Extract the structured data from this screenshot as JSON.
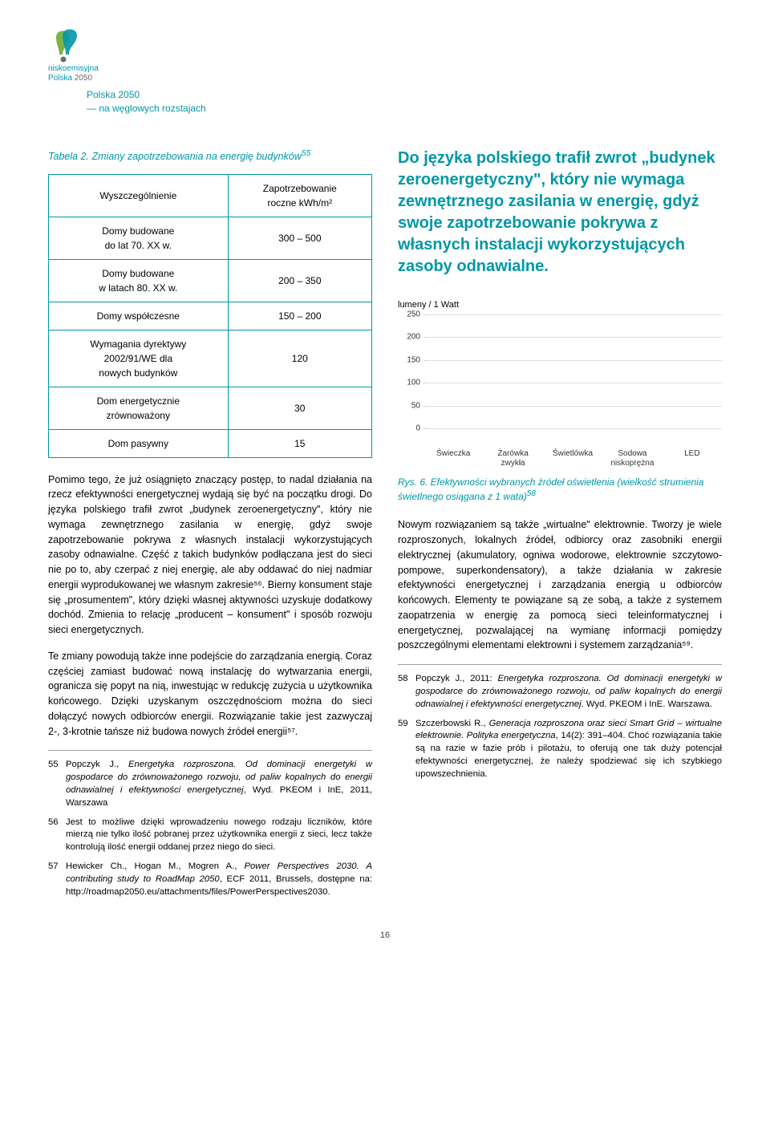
{
  "header": {
    "brand_line1": "niskoemisyjna",
    "brand_line2": "Polska 2050",
    "subtitle_l1": "Polska 2050",
    "subtitle_l2": "— na węglowych rozstajach"
  },
  "table": {
    "title_prefix": "Tabela 2.",
    "title_rest": " Zmiany zapotrzebowania na energię budynków",
    "fn": "55",
    "col1": "Wyszczególnienie",
    "col2_l1": "Zapotrzebowanie",
    "col2_l2": "roczne kWh/m²",
    "rows": [
      {
        "label_l1": "Domy budowane",
        "label_l2": "do lat 70. XX w.",
        "val": "300 – 500"
      },
      {
        "label_l1": "Domy budowane",
        "label_l2": "w latach 80. XX w.",
        "val": "200 – 350"
      },
      {
        "label_l1": "Domy współczesne",
        "label_l2": "",
        "val": "150 – 200"
      },
      {
        "label_l1": "Wymagania dyrektywy",
        "label_l2": "2002/91/WE dla",
        "label_l3": "nowych budynków",
        "val": "120"
      },
      {
        "label_l1": "Dom energetycznie",
        "label_l2": "zrównoważony",
        "val": "30"
      },
      {
        "label_l1": "Dom pasywny",
        "label_l2": "",
        "val": "15"
      }
    ]
  },
  "pullquote": "Do języka polskiego trafił zwrot „budynek zeroenergetyczny\", który nie wymaga zewnętrznego zasilania w energię, gdyż swoje zapotrzebowanie pokrywa z własnych instalacji wykorzystujących zasoby odnawialne.",
  "chart": {
    "y_label": "lumeny / 1 Watt",
    "y_ticks": [
      "0",
      "50",
      "100",
      "150",
      "200",
      "250"
    ],
    "ylim": [
      0,
      250
    ],
    "x_labels": [
      "Świeczka",
      "Żarówka zwykła",
      "Świetlówka",
      "Sodowa niskoprężna",
      "LED"
    ],
    "grid_color": "#bbbbbb",
    "tick_fontsize": 10,
    "caption_prefix": "Rys. 6.",
    "caption_rest": " Efektywności wybranych źródeł oświetlenia (wielkość strumienia świetlnego osiągana z 1 wata)",
    "caption_fn": "58"
  },
  "left_body": {
    "p1": "Pomimo tego, że już osiągnięto znaczący postęp, to nadal działania na rzecz efektywności energetycznej wydają się być na początku drogi. Do języka polskiego trafił zwrot „budynek zeroenergetyczny\", który nie wymaga zewnętrznego zasilania w energię, gdyż swoje zapotrzebowanie pokrywa z własnych instalacji wykorzystujących zasoby odnawialne. Część z takich budynków podłączana jest do sieci nie po to, aby czerpać z niej energię, ale aby oddawać do niej nadmiar energii wyprodukowanej we własnym zakresie⁵⁶. Bierny konsument staje się „prosumentem\", który dzięki własnej aktywności uzyskuje dodatkowy dochód. Zmienia to relację „producent – konsument\" i sposób rozwoju sieci energetycznych.",
    "p2": "Te zmiany powodują także inne podejście do zarządzania energią. Coraz częściej zamiast budować nową instalację do wytwarzania energii, ogranicza się popyt na nią, inwestując w redukcję zużycia u użytkownika końcowego. Dzięki uzyskanym oszczędnościom można do sieci dołączyć nowych odbiorców energii. Rozwiązanie takie jest zazwyczaj 2-, 3-krotnie tańsze niż budowa nowych źródeł energii⁵⁷."
  },
  "right_body": {
    "p1": "Nowym rozwiązaniem są także „wirtualne\" elektrownie. Tworzy je wiele rozproszonych, lokalnych źródeł, odbiorcy oraz zasobniki energii elektrycznej (akumulatory, ogniwa wodorowe, elektrownie szczytowo-pompowe, superkondensatory), a także działania w zakresie efektywności energetycznej i zarządzania energią u odbiorców końcowych. Elementy te powiązane są ze sobą, a także z systemem zaopatrzenia w energię za pomocą sieci teleinformatycznej i energetycznej, pozwalającej na wymianę informacji pomiędzy poszczególnymi elementami elektrowni i systemem zarządzania⁵⁹."
  },
  "fn_left": [
    {
      "n": "55",
      "text": "Popczyk J., <em class='ital'>Energetyka rozproszona. Od dominacji energetyki w gospodarce do zrównoważonego rozwoju, od paliw kopalnych do energii odnawialnej i efektywności energetycznej</em>, Wyd. PKEOM i InE, 2011, Warszawa"
    },
    {
      "n": "56",
      "text": "Jest to możliwe dzięki wprowadzeniu nowego rodzaju liczników, które mierzą nie tylko ilość pobranej przez użytkownika energii z sieci, lecz także kontrolują ilość energii oddanej przez niego do sieci."
    },
    {
      "n": "57",
      "text": "Hewicker Ch., Hogan M., Mogren A., <em class='ital'>Power Perspectives 2030. A contributing study to RoadMap 2050</em>, ECF 2011, Brussels, dostępne na: http://roadmap2050.eu/attachments/files/PowerPerspectives2030."
    }
  ],
  "fn_right": [
    {
      "n": "58",
      "text": "Popczyk J., 2011: <em class='ital'>Energetyka rozproszona. Od dominacji energetyki w gospodarce do zrównoważonego rozwoju, od paliw kopalnych do energii odnawialnej i efektywności energetycznej</em>. Wyd. PKEOM i InE. Warszawa."
    },
    {
      "n": "59",
      "text": "Szczerbowski R., <em class='ital'>Generacja rozproszona oraz sieci Smart Grid – wirtualne elektrownie. Polityka energetyczna</em>, 14(2): 391–404. Choć rozwiązania takie są na razie w fazie prób i pilotażu, to oferują one tak duży potencjał efektywności energetycznej, że należy spodziewać się ich szybkiego upowszechnienia."
    }
  ],
  "page_num": "16",
  "colors": {
    "accent": "#0097a7",
    "grid": "#bbbbbb",
    "text": "#000000"
  }
}
